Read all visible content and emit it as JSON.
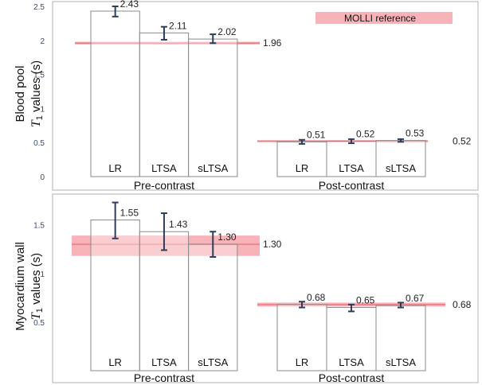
{
  "chart_data": [
    {
      "type": "bar",
      "region": "Blood pool",
      "ylabel_italic": "T",
      "ylabel_sub": "1",
      "ylabel_rest": " values (s)",
      "ylim": [
        0,
        2.5
      ],
      "yticks": [
        0,
        0.5,
        1,
        1.5,
        2,
        2.5
      ],
      "yticklabels": [
        "0",
        "0.5",
        "1",
        "1.5",
        "2",
        "2.5"
      ],
      "legend": {
        "label": "MOLLI reference",
        "placement": "top-right"
      },
      "groups": [
        {
          "label": "Pre-contrast",
          "categories": [
            "LR",
            "LTSA",
            "sLTSA"
          ],
          "values": [
            2.43,
            2.11,
            2.02
          ],
          "value_labels": [
            "2.43",
            "2.11",
            "2.02"
          ],
          "err_low": [
            2.35,
            2.01,
            1.96
          ],
          "err_high": [
            2.5,
            2.2,
            2.09
          ],
          "reference": 1.96,
          "reference_label": "1.96",
          "reference_band": [
            1.94,
            1.98
          ]
        },
        {
          "label": "Post-contrast",
          "categories": [
            "LR",
            "LTSA",
            "sLTSA"
          ],
          "values": [
            0.51,
            0.52,
            0.53
          ],
          "value_labels": [
            "0.51",
            "0.52",
            "0.53"
          ],
          "err_low": [
            0.48,
            0.49,
            0.51
          ],
          "err_high": [
            0.54,
            0.55,
            0.55
          ],
          "reference": 0.52,
          "reference_label": "0.52",
          "reference_band": [
            0.505,
            0.535
          ]
        }
      ]
    },
    {
      "type": "bar",
      "region": "Myocardium wall",
      "ylabel_italic": "T",
      "ylabel_sub": "1",
      "ylabel_rest": " values (s)",
      "ylim": [
        0,
        1.8
      ],
      "yticks": [
        0.5,
        1,
        1.5
      ],
      "yticklabels": [
        "0.5",
        "1",
        "1.5"
      ],
      "groups": [
        {
          "label": "Pre-contrast",
          "categories": [
            "LR",
            "LTSA",
            "sLTSA"
          ],
          "values": [
            1.55,
            1.43,
            1.3
          ],
          "value_labels": [
            "1.55",
            "1.43",
            "1.30"
          ],
          "err_low": [
            1.36,
            1.24,
            1.17
          ],
          "err_high": [
            1.73,
            1.62,
            1.43
          ],
          "reference": 1.3,
          "reference_label": "1.30",
          "reference_band": [
            1.18,
            1.39
          ]
        },
        {
          "label": "Post-contrast",
          "categories": [
            "LR",
            "LTSA",
            "sLTSA"
          ],
          "values": [
            0.68,
            0.65,
            0.67
          ],
          "value_labels": [
            "0.68",
            "0.65",
            "0.67"
          ],
          "err_low": [
            0.65,
            0.61,
            0.65
          ],
          "err_high": [
            0.71,
            0.68,
            0.7
          ],
          "reference": 0.68,
          "reference_label": "0.68",
          "reference_band": [
            0.66,
            0.7
          ]
        }
      ]
    }
  ],
  "colors": {
    "bar_fill": "#ffffff",
    "bar_stroke": "#8a8a8a",
    "error": "#2e3d5c",
    "ref_band": "#f7b3b8",
    "ref_line": "#ee7b86",
    "frame": "#b0b0b0"
  }
}
